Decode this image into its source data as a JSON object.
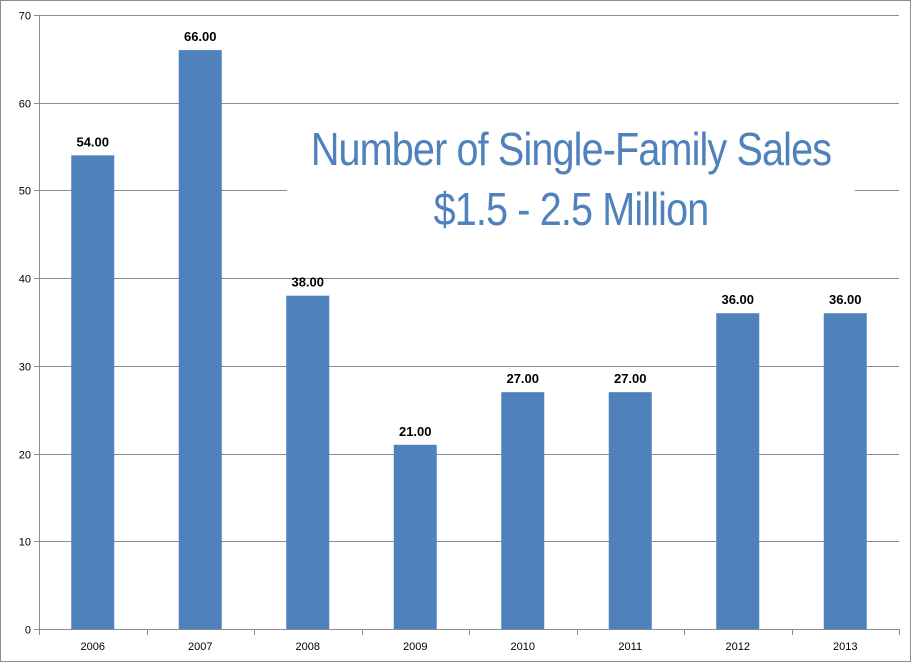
{
  "chart_data": {
    "type": "bar",
    "title": "Number of Single-Family Sales",
    "subtitle": "$1.5 - 2.5 Million",
    "xlabel": "",
    "ylabel": "",
    "categories": [
      "2006",
      "2007",
      "2008",
      "2009",
      "2010",
      "2011",
      "2012",
      "2013"
    ],
    "values": [
      54,
      66,
      38,
      21,
      27,
      27,
      36,
      36
    ],
    "data_labels": [
      "54.00",
      "66.00",
      "38.00",
      "21.00",
      "27.00",
      "27.00",
      "36.00",
      "36.00"
    ],
    "ylim": [
      0,
      70
    ],
    "yticks": [
      0,
      10,
      20,
      30,
      40,
      50,
      60,
      70
    ],
    "grid": true,
    "legend": "none",
    "colors": {
      "bar": "#4f81bd",
      "grid": "#8c8c8c",
      "axis": "#8c8c8c",
      "text": "#000000",
      "title": "#4f81bd"
    }
  }
}
